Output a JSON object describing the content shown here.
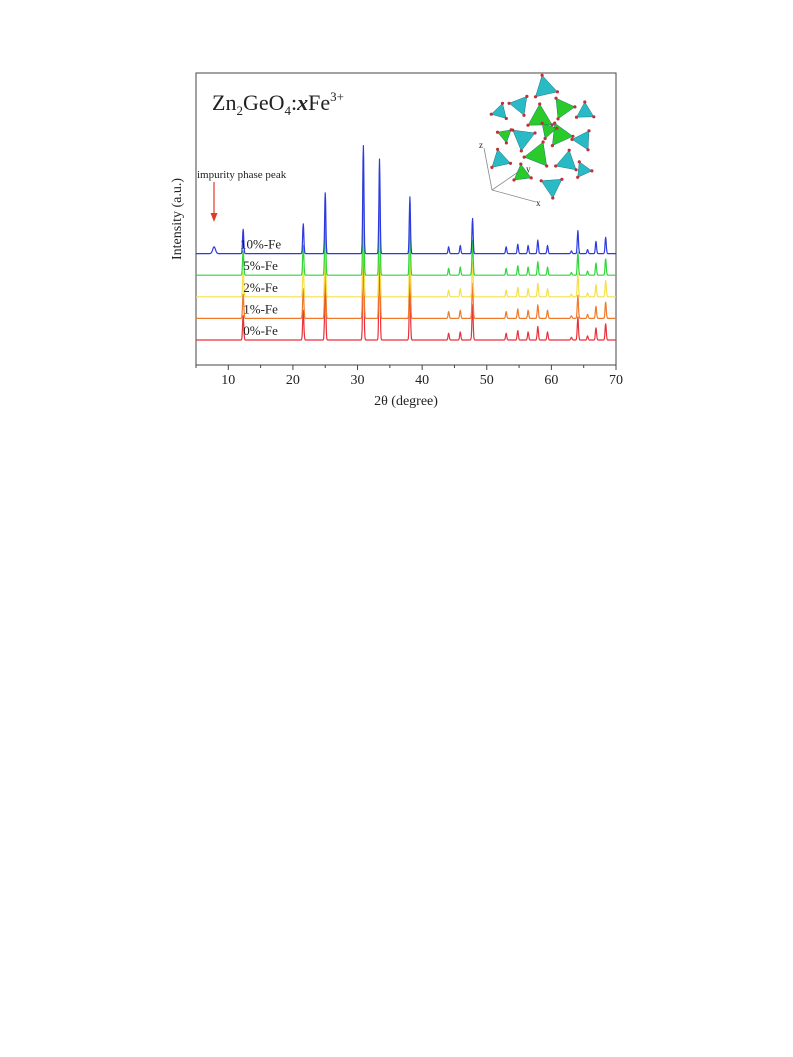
{
  "chart_data": {
    "type": "line",
    "title_parts": {
      "base": "Zn",
      "sub1": "2",
      "mid": "GeO",
      "sub2": "4",
      "colon": ":",
      "x": "x",
      "fe": "Fe",
      "sup": "3+"
    },
    "xlabel": "2θ (degree)",
    "ylabel": "Intensity (a.u.)",
    "xlim": [
      5,
      70
    ],
    "xticks": [
      10,
      20,
      30,
      40,
      50,
      60,
      70
    ],
    "y_ticks_shown": false,
    "annotation": "impurity phase peak",
    "annotation_x": 7.8,
    "peaks": [
      {
        "pos": 12.3,
        "h": 0.18
      },
      {
        "pos": 21.6,
        "h": 0.22
      },
      {
        "pos": 25.0,
        "h": 0.45
      },
      {
        "pos": 30.9,
        "h": 0.8
      },
      {
        "pos": 33.4,
        "h": 0.7
      },
      {
        "pos": 38.1,
        "h": 0.42
      },
      {
        "pos": 44.1,
        "h": 0.05
      },
      {
        "pos": 45.9,
        "h": 0.06
      },
      {
        "pos": 47.8,
        "h": 0.26
      },
      {
        "pos": 53.0,
        "h": 0.05
      },
      {
        "pos": 54.8,
        "h": 0.07
      },
      {
        "pos": 56.4,
        "h": 0.06
      },
      {
        "pos": 57.9,
        "h": 0.1
      },
      {
        "pos": 59.4,
        "h": 0.06
      },
      {
        "pos": 63.1,
        "h": 0.02
      },
      {
        "pos": 64.1,
        "h": 0.17
      },
      {
        "pos": 65.6,
        "h": 0.03
      },
      {
        "pos": 66.9,
        "h": 0.09
      },
      {
        "pos": 68.4,
        "h": 0.12
      }
    ],
    "series": [
      {
        "name": "0%-Fe",
        "color": "#e8323a",
        "offset": 0.0,
        "impurity": 0.0
      },
      {
        "name": "1%-Fe",
        "color": "#f07a2a",
        "offset": 0.16,
        "impurity": 0.0
      },
      {
        "name": "2%-Fe",
        "color": "#f5e04a",
        "offset": 0.32,
        "impurity": 0.0
      },
      {
        "name": "5%-Fe",
        "color": "#2ed63a",
        "offset": 0.48,
        "impurity": 0.0
      },
      {
        "name": "10%-Fe",
        "color": "#2e3ae0",
        "offset": 0.64,
        "impurity": 0.05
      }
    ]
  },
  "inset": {
    "axis_labels": [
      "z",
      "y",
      "x"
    ],
    "tetra_color": "#1fb7c4",
    "oct_color": "#1ec81e",
    "atom_color": "#c0303a"
  }
}
